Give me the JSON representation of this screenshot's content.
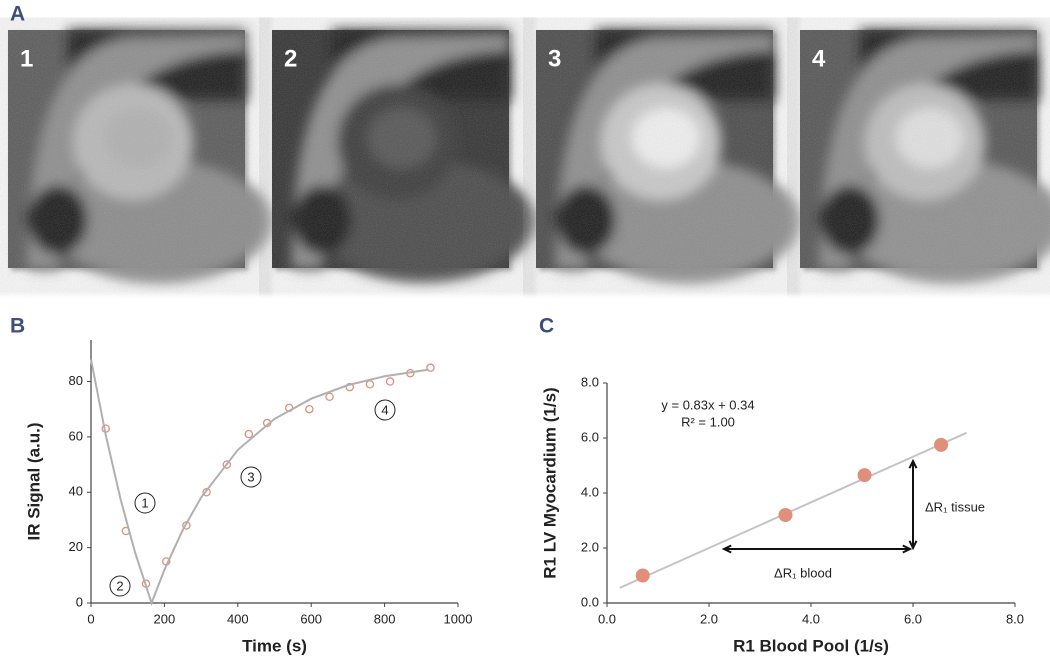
{
  "panel_labels": [
    "A",
    "B",
    "C"
  ],
  "image_labels": [
    "1",
    "2",
    "3",
    "4"
  ],
  "chart_data": [
    {
      "type": "scatter",
      "xlabel": "Time (s)",
      "ylabel": "IR Signal (a.u.)",
      "xlim": [
        0,
        1000
      ],
      "xticks": [
        0,
        200,
        400,
        600,
        800,
        1000
      ],
      "ylim": [
        0,
        95
      ],
      "yticks": [
        0,
        20,
        40,
        60,
        80
      ],
      "annotations": [
        "1",
        "2",
        "3",
        "4"
      ],
      "series": [
        {
          "style": "open-circle",
          "color": "#e0907a",
          "x": [
            40,
            95,
            150,
            205,
            260,
            315,
            370,
            430,
            480,
            540,
            595,
            650,
            705,
            760,
            815,
            870,
            925
          ],
          "values": [
            63,
            26,
            7,
            15,
            28,
            40,
            50,
            61,
            65,
            70.5,
            70,
            74.5,
            78,
            79,
            80,
            83,
            85
          ]
        },
        {
          "style": "line",
          "color": "#b0b0b0",
          "x": [
            0,
            40,
            80,
            120,
            165,
            200,
            250,
            300,
            400,
            500,
            600,
            700,
            800,
            920
          ],
          "values": [
            88,
            60.8,
            37.8,
            18.3,
            0,
            12,
            26.4,
            38.1,
            55.3,
            66.5,
            73.8,
            78.7,
            81.9,
            84.3
          ]
        }
      ]
    },
    {
      "type": "scatter",
      "xlabel": "R1 Blood Pool (1/s)",
      "ylabel": "R1 LV Myocardium (1/s)",
      "xlim": [
        0,
        8
      ],
      "xticks": [
        {
          "value": 0,
          "label": "0.0"
        },
        {
          "value": 2,
          "label": "2.0"
        },
        {
          "value": 4,
          "label": "4.0"
        },
        {
          "value": 6,
          "label": "6.0"
        },
        {
          "value": 8,
          "label": "8.0"
        }
      ],
      "ylim": [
        0,
        8
      ],
      "yticks": [
        {
          "value": 0,
          "label": "0.0"
        },
        {
          "value": 2,
          "label": "2.0"
        },
        {
          "value": 4,
          "label": "4.0"
        },
        {
          "value": 6,
          "label": "6.0"
        },
        {
          "value": 8,
          "label": "8.0"
        }
      ],
      "annotations": [
        "y = 0.83x + 0.34",
        "R² = 1.00",
        "ΔR₁ blood",
        "ΔR₁ tissue"
      ],
      "series": [
        {
          "style": "line",
          "color": "#c4c4c4",
          "x": [
            0.25,
            7.05
          ],
          "values": [
            0.55,
            6.19
          ]
        },
        {
          "style": "filled-circle",
          "color": "#e0907a",
          "x": [
            0.7,
            3.5,
            5.05,
            6.55
          ],
          "values": [
            1.0,
            3.2,
            4.65,
            5.75
          ]
        }
      ]
    }
  ]
}
